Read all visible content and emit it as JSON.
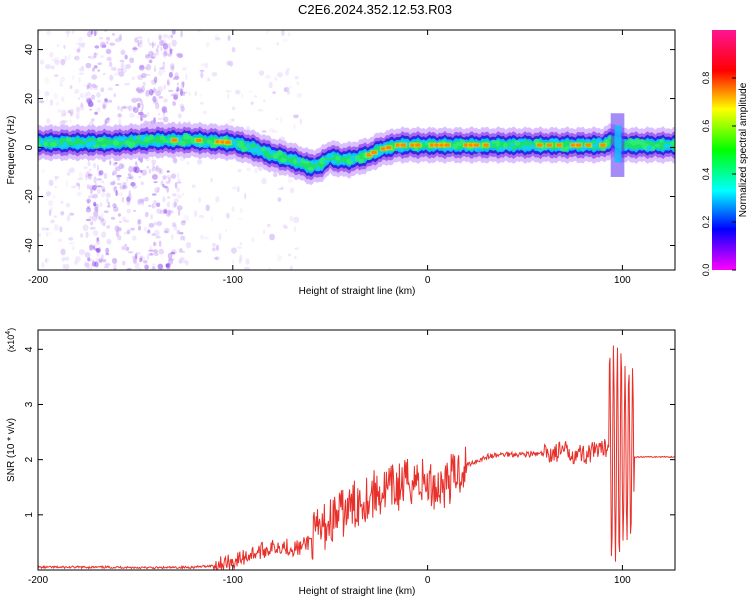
{
  "title": "C2E6.2024.352.12.53.R03",
  "chart_data": [
    {
      "type": "heatmap",
      "xlabel": "Height of straight line (km)",
      "ylabel": "Frequency (Hz)",
      "xlim": [
        -200,
        127
      ],
      "ylim": [
        -50,
        48
      ],
      "xticks": [
        -200,
        -100,
        0,
        100
      ],
      "xtick_labels": [
        "-200",
        "-100",
        "0",
        "100"
      ],
      "yticks": [
        -40,
        -20,
        0,
        20,
        40
      ],
      "ytick_labels": [
        "-40",
        "-20",
        "0",
        "20",
        "40"
      ],
      "colorbar": {
        "label": "Normalized spectral amplitude",
        "range": [
          0,
          1
        ],
        "ticks": [
          0,
          0.2,
          0.4,
          0.6,
          0.8
        ],
        "tick_labels": [
          "0.0",
          "0.2",
          "0.4",
          "0.6",
          "0.8"
        ],
        "colors": [
          "#ff00ff",
          "#0000ff",
          "#00ffff",
          "#00ff00",
          "#ffff00",
          "#ff0000",
          "#ff1493"
        ]
      },
      "ridge": {
        "x": [
          -200,
          -180,
          -160,
          -140,
          -120,
          -100,
          -90,
          -80,
          -70,
          -60,
          -55,
          -50,
          -45,
          -40,
          -35,
          -30,
          -25,
          -20,
          -15,
          -10,
          -5,
          0,
          10,
          20,
          40,
          60,
          80,
          90,
          95,
          100,
          105,
          110,
          127
        ],
        "y": [
          2,
          2,
          2,
          3,
          3,
          2,
          0,
          -3,
          -5,
          -8,
          -7,
          -4,
          -5,
          -5,
          -4,
          -3,
          -1,
          0,
          1,
          1,
          1,
          1,
          1,
          1,
          1,
          1,
          1,
          1,
          3,
          1,
          1,
          1,
          1
        ]
      }
    },
    {
      "type": "line",
      "xlabel": "Height of straight line (km)",
      "ylabel": "SNR (10 * v/v)",
      "scale_label": "(x10",
      "scale_exponent": "4",
      "xlim": [
        -200,
        127
      ],
      "ylim": [
        0,
        4.35
      ],
      "xticks": [
        -200,
        -100,
        0,
        100
      ],
      "xtick_labels": [
        "-200",
        "-100",
        "0",
        "100"
      ],
      "yticks": [
        1,
        2,
        3,
        4
      ],
      "ytick_labels": [
        "1",
        "2",
        "3",
        "4"
      ],
      "color": "#e8302a",
      "series": [
        {
          "x": [
            -200,
            -180,
            -160,
            -140,
            -120,
            -110,
            -100,
            -95,
            -90,
            -85,
            -80,
            -75,
            -70,
            -65,
            -60,
            -55,
            -50,
            -45,
            -40,
            -35,
            -30,
            -25,
            -20,
            -15,
            -10,
            -5,
            0,
            5,
            10,
            15,
            20,
            30,
            40,
            50,
            60,
            70,
            80,
            90,
            95,
            97,
            98,
            100,
            101,
            103,
            104,
            106,
            110,
            120,
            127
          ],
          "y": [
            0.05,
            0.05,
            0.05,
            0.04,
            0.05,
            0.08,
            0.15,
            0.22,
            0.3,
            0.35,
            0.4,
            0.45,
            0.4,
            0.4,
            0.55,
            0.7,
            0.9,
            1.0,
            1.1,
            1.25,
            1.35,
            1.4,
            1.45,
            1.5,
            1.6,
            1.65,
            1.55,
            1.5,
            1.6,
            1.75,
            1.9,
            2.05,
            2.1,
            2.1,
            2.1,
            2.15,
            2.1,
            2.15,
            2.4,
            4.3,
            0.4,
            4.1,
            0.2,
            3.7,
            0.3,
            2.05,
            2.05,
            2.05,
            2.05
          ]
        }
      ]
    }
  ]
}
